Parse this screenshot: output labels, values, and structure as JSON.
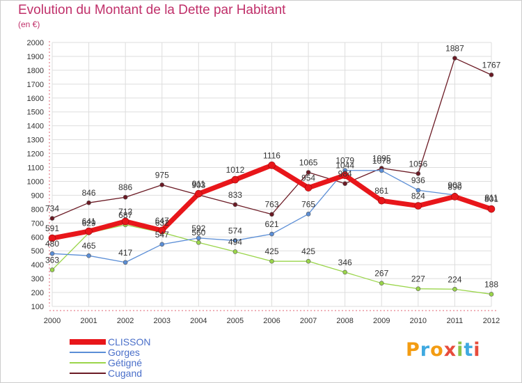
{
  "title": "Evolution du Montant de la Dette par Habitant",
  "subtitle": "(en €)",
  "logo": {
    "text": "Proxiti",
    "colors": [
      "#f39c12",
      "#3fa9e0",
      "#f39c12",
      "#e74c3c",
      "#8bc34a",
      "#3fa9e0",
      "#e74c3c"
    ]
  },
  "chart_data": {
    "type": "line",
    "x": [
      "2000",
      "2001",
      "2002",
      "2003",
      "2004",
      "2005",
      "2006",
      "2007",
      "2008",
      "2009",
      "2010",
      "2011",
      "2012"
    ],
    "ylim": [
      100,
      2000
    ],
    "yticks": [
      100,
      200,
      300,
      400,
      500,
      600,
      700,
      800,
      900,
      1000,
      1100,
      1200,
      1300,
      1400,
      1500,
      1600,
      1700,
      1800,
      1900,
      2000
    ],
    "grid": true,
    "legend": "bottom-left",
    "series": [
      {
        "name": "Cugand",
        "color": "#6b1a24",
        "values": [
          734,
          846,
          886,
          975,
          903,
          833,
          763,
          1065,
          984,
          1095,
          1056,
          1887,
          1767
        ]
      },
      {
        "name": "Gétigné",
        "color": "#9ad54a",
        "values": [
          363,
          629,
          687,
          632,
          560,
          494,
          425,
          425,
          346,
          267,
          227,
          224,
          188
        ]
      },
      {
        "name": "Gorges",
        "color": "#5b8ed6",
        "values": [
          480,
          465,
          417,
          547,
          592,
          574,
          621,
          765,
          1079,
          1078,
          936,
          902,
          811
        ]
      },
      {
        "name": "CLISSON",
        "color": "#e8161a",
        "values": [
          591,
          641,
          712,
          647,
          911,
          1012,
          1116,
          954,
          1044,
          861,
          824,
          890,
          801
        ]
      }
    ]
  }
}
